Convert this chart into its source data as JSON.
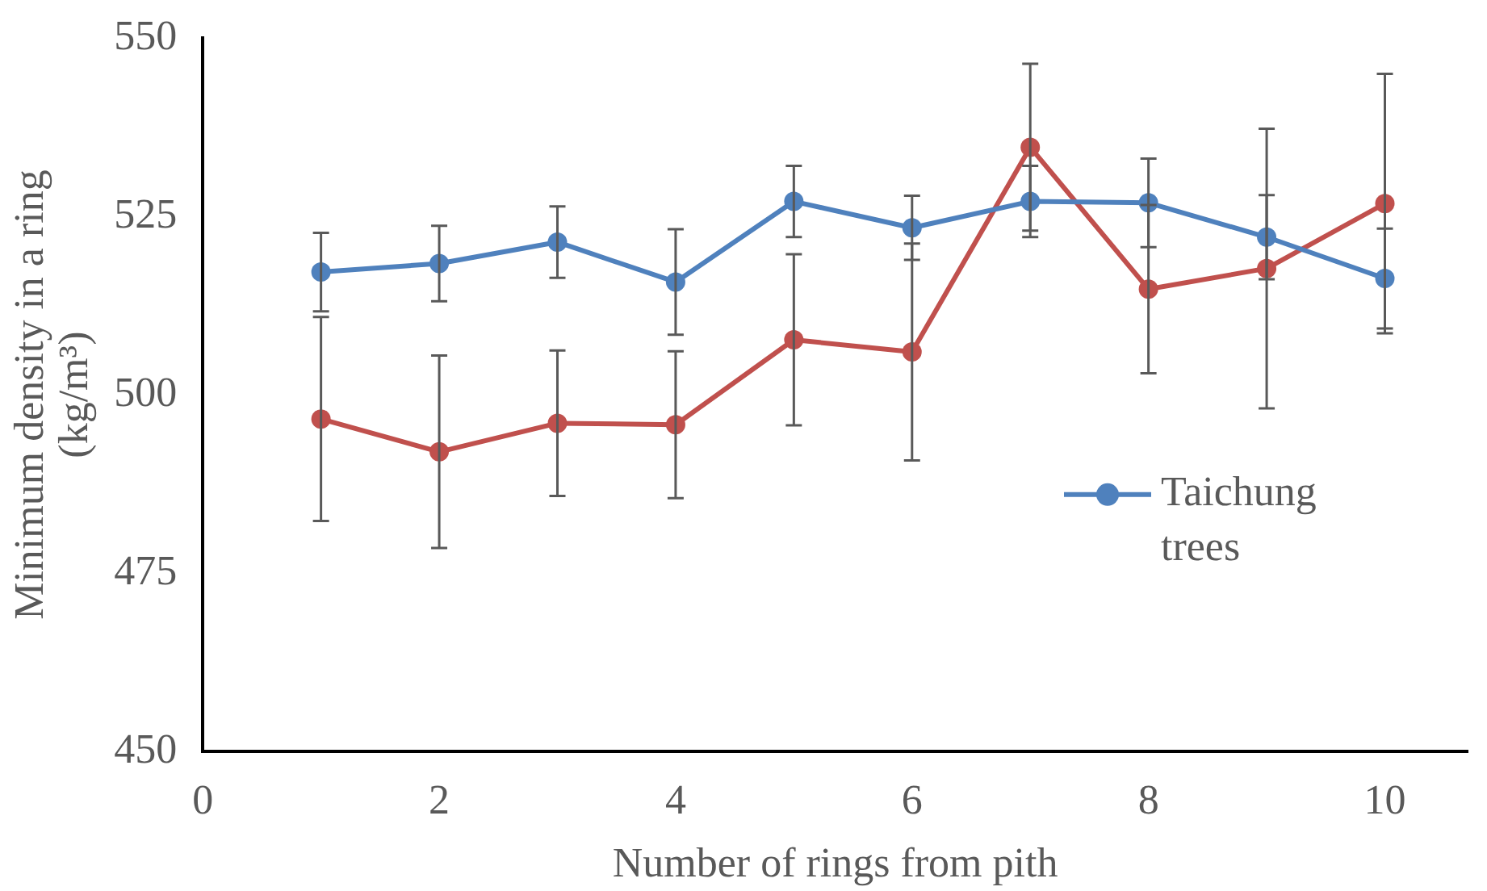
{
  "chart_data": {
    "type": "line",
    "xlabel": "Number of rings from pith",
    "ylabel": "Minimum density in a ring (kg/m³)",
    "x": [
      1,
      2,
      3,
      4,
      5,
      6,
      7,
      8,
      9,
      10
    ],
    "series": [
      {
        "name": "Taichung trees",
        "color": "#4f81bd",
        "values": [
          517.2,
          518.4,
          521.4,
          515.8,
          527.1,
          523.4,
          527.1,
          526.9,
          522.1,
          516.3
        ],
        "errors": [
          5.5,
          5.3,
          5,
          7.4,
          5,
          4.5,
          5,
          6.2,
          5.9,
          7
        ]
      },
      {
        "color": "#c0504d",
        "values": [
          496.6,
          492.0,
          496.0,
          495.8,
          507.7,
          506.0,
          534.7,
          514.8,
          517.7,
          526.8
        ],
        "errors": [
          14.3,
          13.5,
          10.2,
          10.3,
          12,
          15.2,
          11.7,
          11.8,
          19.6,
          18.2
        ]
      }
    ],
    "xlim": [
      0,
      10.7
    ],
    "xticks": [
      0,
      2,
      4,
      6,
      8,
      10
    ],
    "ylim": [
      450,
      550
    ],
    "yticks": [
      450,
      475,
      500,
      525,
      550
    ],
    "grid": false,
    "legend": "right",
    "marker": "circle",
    "line_style": "solid"
  }
}
